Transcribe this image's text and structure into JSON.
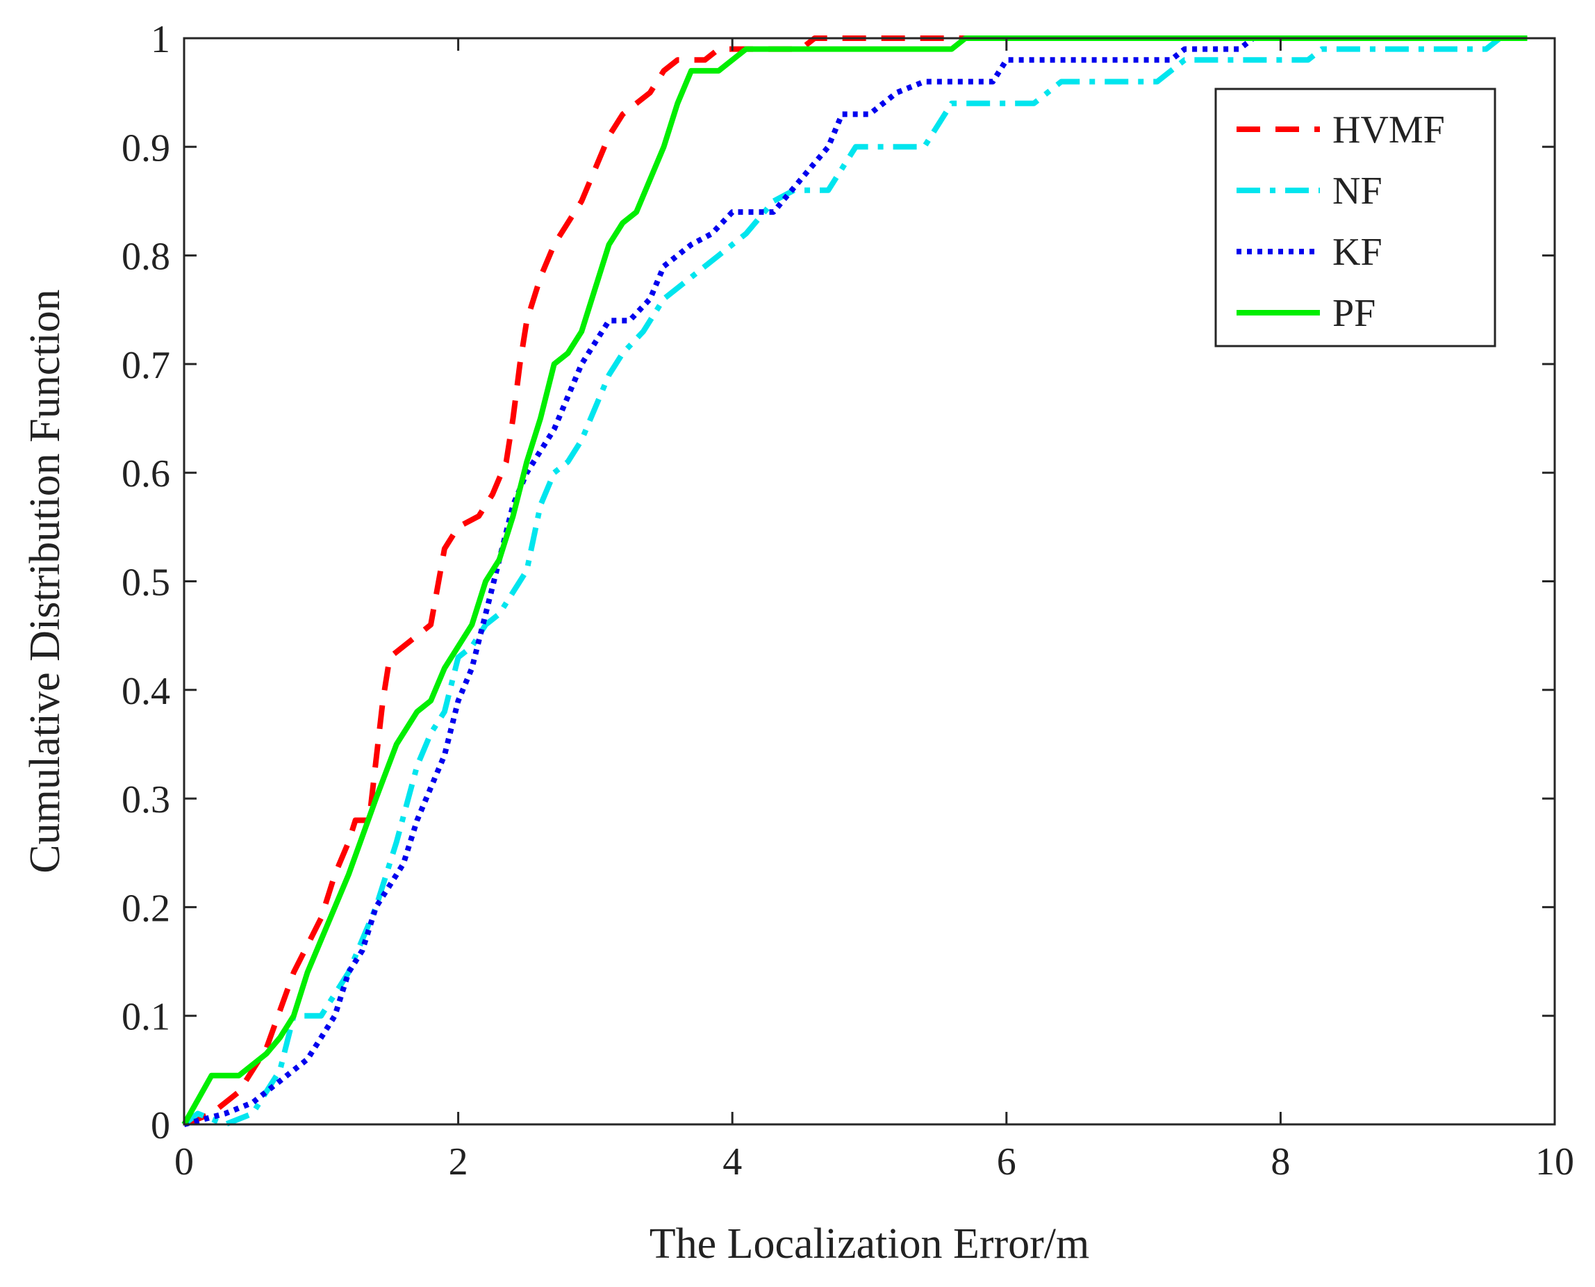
{
  "chart_data": {
    "type": "line",
    "title": "",
    "xlabel": "The Localization Error/m",
    "ylabel": "Cumulative Distribution Function",
    "xlim": [
      0,
      10
    ],
    "ylim": [
      0,
      1
    ],
    "xticks": [
      0,
      2,
      4,
      6,
      8,
      10
    ],
    "yticks": [
      0,
      0.1,
      0.2,
      0.3,
      0.4,
      0.5,
      0.6,
      0.7,
      0.8,
      0.9,
      1
    ],
    "xtick_labels": [
      "0",
      "2",
      "4",
      "6",
      "8",
      "10"
    ],
    "ytick_labels": [
      "0",
      "0.1",
      "0.2",
      "0.3",
      "0.4",
      "0.5",
      "0.6",
      "0.7",
      "0.8",
      "0.9",
      "1"
    ],
    "grid": false,
    "legend_position": "top-right",
    "series": [
      {
        "name": "HVMF",
        "color": "#ff0000",
        "style": "dashed",
        "points": [
          [
            0,
            0
          ],
          [
            0.2,
            0.01
          ],
          [
            0.4,
            0.03
          ],
          [
            0.6,
            0.07
          ],
          [
            0.8,
            0.14
          ],
          [
            1.0,
            0.19
          ],
          [
            1.1,
            0.23
          ],
          [
            1.2,
            0.26
          ],
          [
            1.25,
            0.28
          ],
          [
            1.35,
            0.28
          ],
          [
            1.45,
            0.39
          ],
          [
            1.5,
            0.43
          ],
          [
            1.6,
            0.44
          ],
          [
            1.7,
            0.45
          ],
          [
            1.8,
            0.46
          ],
          [
            1.9,
            0.53
          ],
          [
            2.0,
            0.55
          ],
          [
            2.15,
            0.56
          ],
          [
            2.25,
            0.58
          ],
          [
            2.35,
            0.61
          ],
          [
            2.4,
            0.65
          ],
          [
            2.45,
            0.7
          ],
          [
            2.5,
            0.74
          ],
          [
            2.6,
            0.78
          ],
          [
            2.7,
            0.81
          ],
          [
            2.8,
            0.83
          ],
          [
            2.9,
            0.85
          ],
          [
            3.0,
            0.88
          ],
          [
            3.1,
            0.91
          ],
          [
            3.2,
            0.93
          ],
          [
            3.3,
            0.94
          ],
          [
            3.4,
            0.95
          ],
          [
            3.5,
            0.97
          ],
          [
            3.6,
            0.98
          ],
          [
            3.8,
            0.98
          ],
          [
            3.9,
            0.99
          ],
          [
            4.5,
            0.99
          ],
          [
            4.6,
            1.0
          ],
          [
            9.8,
            1.0
          ]
        ]
      },
      {
        "name": "NF",
        "color": "#00e5ee",
        "style": "dash-dot",
        "points": [
          [
            0,
            0
          ],
          [
            0.1,
            0.01
          ],
          [
            0.3,
            0.0
          ],
          [
            0.5,
            0.01
          ],
          [
            0.7,
            0.05
          ],
          [
            0.8,
            0.1
          ],
          [
            1.0,
            0.1
          ],
          [
            1.2,
            0.14
          ],
          [
            1.4,
            0.2
          ],
          [
            1.55,
            0.26
          ],
          [
            1.7,
            0.33
          ],
          [
            1.8,
            0.36
          ],
          [
            1.9,
            0.38
          ],
          [
            2.0,
            0.43
          ],
          [
            2.1,
            0.44
          ],
          [
            2.2,
            0.46
          ],
          [
            2.3,
            0.47
          ],
          [
            2.4,
            0.49
          ],
          [
            2.5,
            0.51
          ],
          [
            2.6,
            0.57
          ],
          [
            2.7,
            0.6
          ],
          [
            2.8,
            0.61
          ],
          [
            2.9,
            0.63
          ],
          [
            3.0,
            0.66
          ],
          [
            3.1,
            0.69
          ],
          [
            3.2,
            0.71
          ],
          [
            3.35,
            0.73
          ],
          [
            3.5,
            0.76
          ],
          [
            3.7,
            0.78
          ],
          [
            3.9,
            0.8
          ],
          [
            4.1,
            0.82
          ],
          [
            4.3,
            0.85
          ],
          [
            4.45,
            0.86
          ],
          [
            4.7,
            0.86
          ],
          [
            4.8,
            0.88
          ],
          [
            4.9,
            0.9
          ],
          [
            5.4,
            0.9
          ],
          [
            5.6,
            0.94
          ],
          [
            6.2,
            0.94
          ],
          [
            6.4,
            0.96
          ],
          [
            7.1,
            0.96
          ],
          [
            7.3,
            0.98
          ],
          [
            8.2,
            0.98
          ],
          [
            8.3,
            0.99
          ],
          [
            9.5,
            0.99
          ],
          [
            9.6,
            1.0
          ],
          [
            9.8,
            1.0
          ]
        ]
      },
      {
        "name": "KF",
        "color": "#0000ee",
        "style": "dotted",
        "points": [
          [
            0,
            0
          ],
          [
            0.3,
            0.01
          ],
          [
            0.5,
            0.02
          ],
          [
            0.7,
            0.04
          ],
          [
            0.9,
            0.06
          ],
          [
            1.0,
            0.08
          ],
          [
            1.1,
            0.1
          ],
          [
            1.2,
            0.14
          ],
          [
            1.3,
            0.16
          ],
          [
            1.4,
            0.2
          ],
          [
            1.5,
            0.22
          ],
          [
            1.6,
            0.24
          ],
          [
            1.7,
            0.28
          ],
          [
            1.8,
            0.31
          ],
          [
            1.9,
            0.34
          ],
          [
            2.0,
            0.39
          ],
          [
            2.1,
            0.42
          ],
          [
            2.2,
            0.47
          ],
          [
            2.3,
            0.52
          ],
          [
            2.4,
            0.57
          ],
          [
            2.5,
            0.6
          ],
          [
            2.6,
            0.62
          ],
          [
            2.7,
            0.64
          ],
          [
            2.8,
            0.67
          ],
          [
            2.9,
            0.7
          ],
          [
            3.0,
            0.72
          ],
          [
            3.1,
            0.74
          ],
          [
            3.25,
            0.74
          ],
          [
            3.4,
            0.76
          ],
          [
            3.5,
            0.79
          ],
          [
            3.7,
            0.81
          ],
          [
            3.85,
            0.82
          ],
          [
            4.0,
            0.84
          ],
          [
            4.3,
            0.84
          ],
          [
            4.5,
            0.87
          ],
          [
            4.7,
            0.9
          ],
          [
            4.8,
            0.93
          ],
          [
            5.0,
            0.93
          ],
          [
            5.2,
            0.95
          ],
          [
            5.4,
            0.96
          ],
          [
            5.9,
            0.96
          ],
          [
            6.0,
            0.98
          ],
          [
            7.2,
            0.98
          ],
          [
            7.3,
            0.99
          ],
          [
            7.7,
            0.99
          ],
          [
            7.8,
            1.0
          ],
          [
            9.8,
            1.0
          ]
        ]
      },
      {
        "name": "PF",
        "color": "#00ee00",
        "style": "solid",
        "points": [
          [
            0,
            0
          ],
          [
            0.2,
            0.045
          ],
          [
            0.4,
            0.045
          ],
          [
            0.6,
            0.065
          ],
          [
            0.7,
            0.08
          ],
          [
            0.8,
            0.1
          ],
          [
            0.9,
            0.14
          ],
          [
            1.0,
            0.17
          ],
          [
            1.2,
            0.23
          ],
          [
            1.4,
            0.3
          ],
          [
            1.55,
            0.35
          ],
          [
            1.7,
            0.38
          ],
          [
            1.8,
            0.39
          ],
          [
            1.9,
            0.42
          ],
          [
            2.0,
            0.44
          ],
          [
            2.1,
            0.46
          ],
          [
            2.2,
            0.5
          ],
          [
            2.3,
            0.52
          ],
          [
            2.4,
            0.56
          ],
          [
            2.5,
            0.61
          ],
          [
            2.6,
            0.65
          ],
          [
            2.7,
            0.7
          ],
          [
            2.8,
            0.71
          ],
          [
            2.9,
            0.73
          ],
          [
            3.0,
            0.77
          ],
          [
            3.1,
            0.81
          ],
          [
            3.2,
            0.83
          ],
          [
            3.3,
            0.84
          ],
          [
            3.4,
            0.87
          ],
          [
            3.5,
            0.9
          ],
          [
            3.6,
            0.94
          ],
          [
            3.7,
            0.97
          ],
          [
            3.9,
            0.97
          ],
          [
            4.1,
            0.99
          ],
          [
            5.6,
            0.99
          ],
          [
            5.7,
            1.0
          ],
          [
            9.8,
            1.0
          ]
        ]
      }
    ]
  }
}
